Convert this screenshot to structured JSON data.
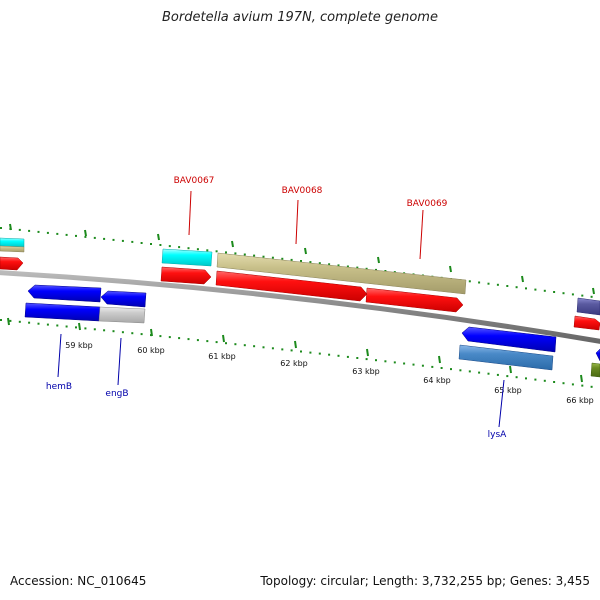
{
  "title": "Bordetella avium 197N, complete genome",
  "footer": {
    "accession": "Accession: NC_010645",
    "summary": "Topology: circular; Length: 3,732,255 bp; Genes: 3,455"
  },
  "colors": {
    "backbone": "#8a8a8a",
    "tick": "#1c8a1c",
    "label_red": "#cc0000",
    "label_blue": "#0000aa",
    "red": "#ff0000",
    "blue": "#0000ee",
    "cyan": "#00ffff",
    "khaki": "#c8c08a",
    "gray": "#c8c8c8",
    "steelblue": "#4a8ac8",
    "slate": "#5a5aa0",
    "olive": "#6a8a22"
  },
  "scale": {
    "labels": [
      "59 kbp",
      "60 kbp",
      "61 kbp",
      "62 kbp",
      "63 kbp",
      "64 kbp",
      "65 kbp",
      "66 kbp"
    ]
  },
  "gene_labels": {
    "BAV0067": "BAV0067",
    "BAV0068": "BAV0068",
    "BAV0069": "BAV0069",
    "hemB": "hemB",
    "engB": "engB",
    "lysA": "lysA"
  }
}
